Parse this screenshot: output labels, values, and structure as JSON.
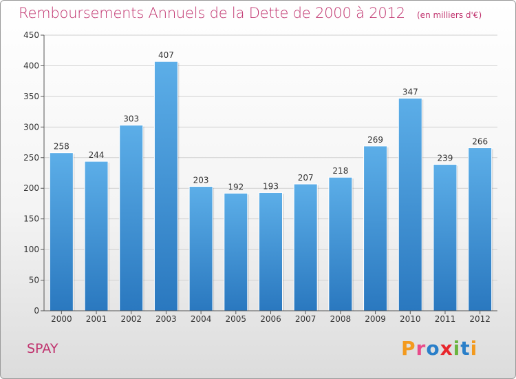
{
  "header": {
    "title": "Remboursements Annuels de la Dette de 2000 à 2012",
    "unit": "(en milliers d'€)"
  },
  "footer": {
    "label": "SPAY",
    "brand": "Proxiti",
    "brand_colors": [
      "#f39a1e",
      "#e84b8a",
      "#2a7fc9",
      "#e8262c",
      "#6ab43e",
      "#2a7fc9",
      "#f39a1e"
    ]
  },
  "colors": {
    "bar_top": "#5caee8",
    "bar_bottom": "#2a78bf",
    "title": "#c0336e",
    "grid": "#d0d0d0",
    "axis": "#555555"
  },
  "chart_data": {
    "type": "bar",
    "categories": [
      "2000",
      "2001",
      "2002",
      "2003",
      "2004",
      "2005",
      "2006",
      "2007",
      "2008",
      "2009",
      "2010",
      "2011",
      "2012"
    ],
    "values": [
      258,
      244,
      303,
      407,
      203,
      192,
      193,
      207,
      218,
      269,
      347,
      239,
      266
    ],
    "ylim": [
      0,
      450
    ],
    "yticks": [
      0,
      50,
      100,
      150,
      200,
      250,
      300,
      350,
      400,
      450
    ],
    "grid": true,
    "xlabel": "",
    "ylabel": ""
  }
}
